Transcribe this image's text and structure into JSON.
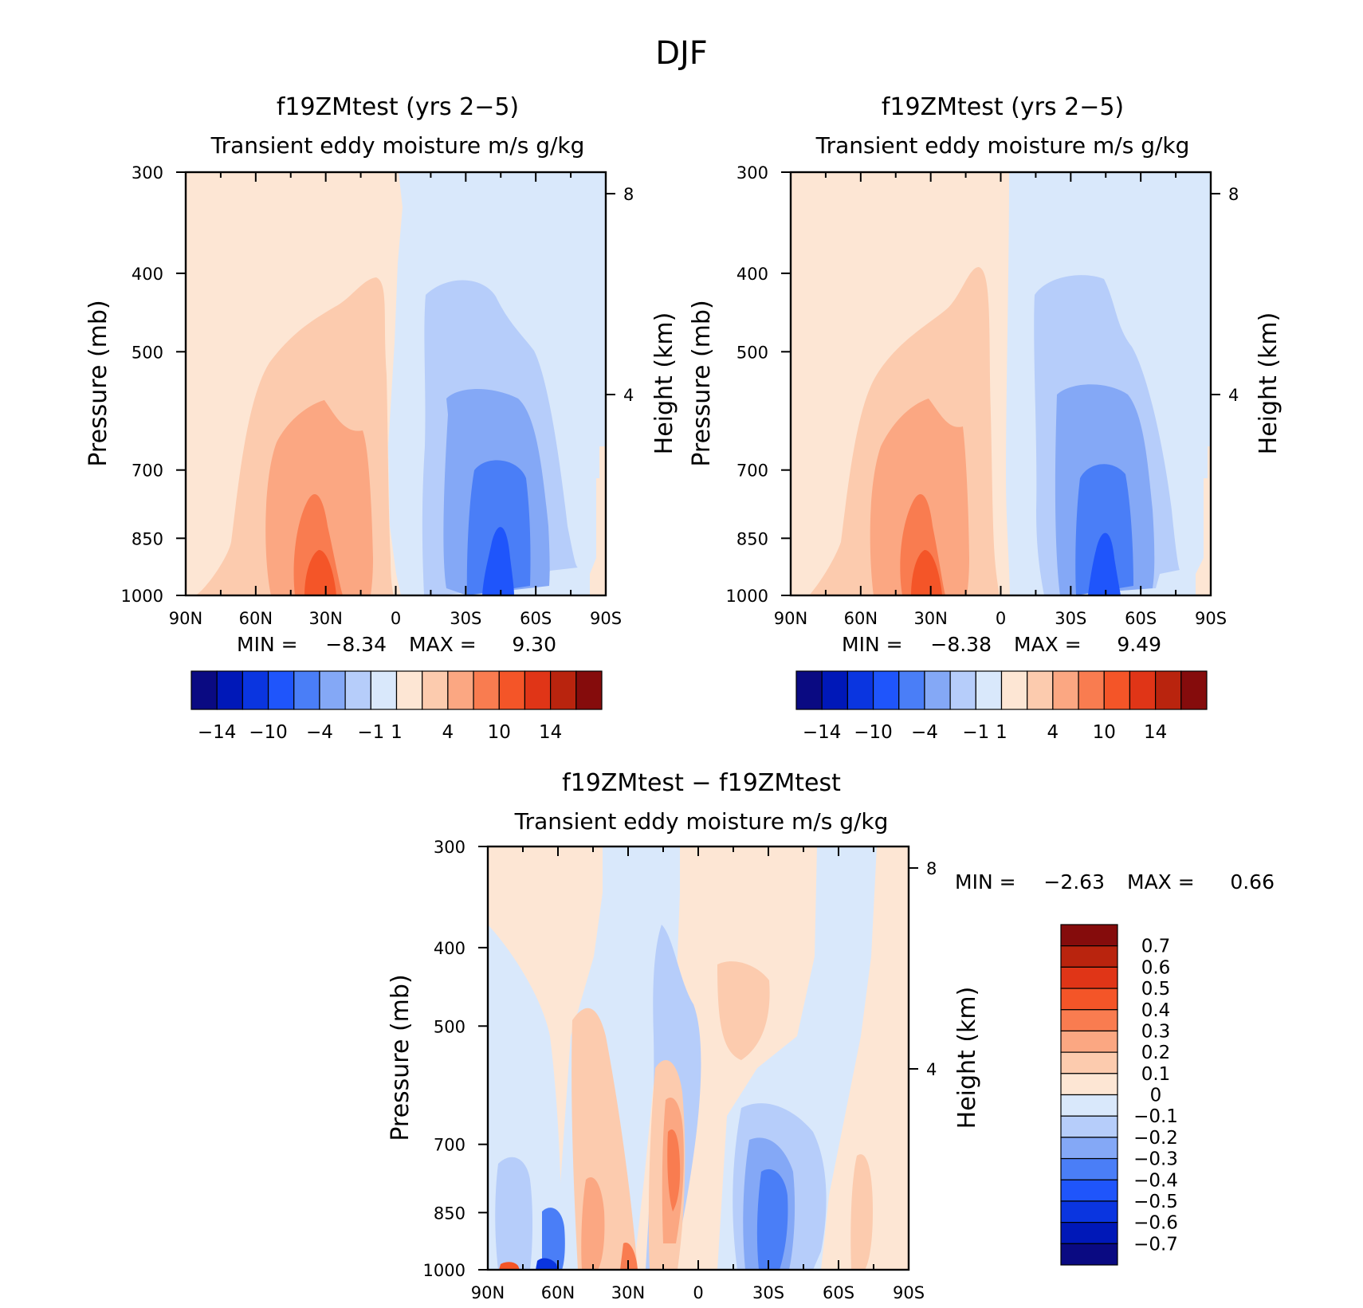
{
  "figure_title": "DJF",
  "colors": {
    "main_scale": [
      "#0a0a82",
      "#0018b8",
      "#0a35e0",
      "#1f55fb",
      "#4a7ef7",
      "#84a8f6",
      "#b6cdfa",
      "#d9e8fb",
      "#fde6d4",
      "#fccbae",
      "#fba782",
      "#f97c50",
      "#f45528",
      "#e03517",
      "#b9240e",
      "#850c0c"
    ],
    "diff_scale": [
      "#0a0a82",
      "#0018b8",
      "#0a35e0",
      "#1f55fb",
      "#4a7ef7",
      "#84a8f6",
      "#b6cdfa",
      "#d9e8fb",
      "#fde6d4",
      "#fccbae",
      "#fba782",
      "#f97c50",
      "#f45528",
      "#e03517",
      "#b9240e",
      "#850c0c"
    ]
  },
  "panels": [
    {
      "title": "f19ZMtest (yrs 2−5)",
      "subtitle": "Transient eddy moisture m/s g/kg",
      "ylabel": "Pressure (mb)",
      "y2label": "Height (km)",
      "yticks": [
        "300",
        "400",
        "500",
        "700",
        "850",
        "1000"
      ],
      "y2ticks": [
        "8",
        "4"
      ],
      "xticks": [
        "90N",
        "60N",
        "30N",
        "0",
        "30S",
        "60S",
        "90S"
      ],
      "min_label": "MIN =",
      "min_value": "−8.34",
      "max_label": "MAX =",
      "max_value": "9.30",
      "colorbar_labels": [
        "−14",
        "−10",
        "−4",
        "−1",
        "1",
        "4",
        "10",
        "14"
      ]
    },
    {
      "title": "f19ZMtest (yrs 2−5)",
      "subtitle": "Transient eddy moisture m/s g/kg",
      "ylabel": "Pressure (mb)",
      "y2label": "Height (km)",
      "yticks": [
        "300",
        "400",
        "500",
        "700",
        "850",
        "1000"
      ],
      "y2ticks": [
        "8",
        "4"
      ],
      "xticks": [
        "90N",
        "60N",
        "30N",
        "0",
        "30S",
        "60S",
        "90S"
      ],
      "min_label": "MIN =",
      "min_value": "−8.38",
      "max_label": "MAX =",
      "max_value": "9.49",
      "colorbar_labels": [
        "−14",
        "−10",
        "−4",
        "−1",
        "1",
        "4",
        "10",
        "14"
      ]
    },
    {
      "title": "f19ZMtest − f19ZMtest",
      "subtitle": "Transient eddy moisture m/s g/kg",
      "ylabel": "Pressure (mb)",
      "y2label": "Height (km)",
      "yticks": [
        "300",
        "400",
        "500",
        "700",
        "850",
        "1000"
      ],
      "y2ticks": [
        "8",
        "4"
      ],
      "xticks": [
        "90N",
        "60N",
        "30N",
        "0",
        "30S",
        "60S",
        "90S"
      ],
      "min_label": "MIN =",
      "min_value": "−2.63",
      "max_label": "MAX =",
      "max_value": "0.66",
      "colorbar_labels": [
        "0.7",
        "0.6",
        "0.5",
        "0.4",
        "0.3",
        "0.2",
        "0.1",
        "0",
        "−0.1",
        "−0.2",
        "−0.3",
        "−0.4",
        "−0.5",
        "−0.6",
        "−0.7"
      ]
    }
  ],
  "chart_data": [
    {
      "type": "heatmap",
      "title": "f19ZMtest (yrs 2−5)",
      "subtitle": "Transient eddy moisture m/s g/kg",
      "xlabel": "",
      "ylabel": "Pressure (mb)",
      "y2label": "Height (km)",
      "x_categories": [
        "90N",
        "60N",
        "30N",
        "0",
        "30S",
        "60S",
        "90S"
      ],
      "y_pressure_levels": [
        300,
        400,
        500,
        700,
        850,
        1000
      ],
      "y_scale": "log",
      "ylim": [
        1000,
        300
      ],
      "height_ticks_km": [
        8,
        4
      ],
      "color_levels": [
        -14,
        -10,
        -4,
        -1,
        1,
        4,
        10,
        14
      ],
      "min": -8.34,
      "max": 9.3,
      "features": [
        {
          "region": "30N near surface",
          "approx_value": 9
        },
        {
          "region": "30S–60S near surface",
          "approx_value": -8
        }
      ]
    },
    {
      "type": "heatmap",
      "title": "f19ZMtest (yrs 2−5)",
      "subtitle": "Transient eddy moisture m/s g/kg",
      "xlabel": "",
      "ylabel": "Pressure (mb)",
      "y2label": "Height (km)",
      "x_categories": [
        "90N",
        "60N",
        "30N",
        "0",
        "30S",
        "60S",
        "90S"
      ],
      "y_pressure_levels": [
        300,
        400,
        500,
        700,
        850,
        1000
      ],
      "y_scale": "log",
      "ylim": [
        1000,
        300
      ],
      "height_ticks_km": [
        8,
        4
      ],
      "color_levels": [
        -14,
        -10,
        -4,
        -1,
        1,
        4,
        10,
        14
      ],
      "min": -8.38,
      "max": 9.49
    },
    {
      "type": "heatmap",
      "title": "f19ZMtest − f19ZMtest",
      "subtitle": "Transient eddy moisture m/s g/kg",
      "xlabel": "",
      "ylabel": "Pressure (mb)",
      "y2label": "Height (km)",
      "x_categories": [
        "90N",
        "60N",
        "30N",
        "0",
        "30S",
        "60S",
        "90S"
      ],
      "y_pressure_levels": [
        300,
        400,
        500,
        700,
        850,
        1000
      ],
      "y_scale": "log",
      "ylim": [
        1000,
        300
      ],
      "height_ticks_km": [
        8,
        4
      ],
      "color_levels": [
        -0.7,
        -0.6,
        -0.5,
        -0.4,
        -0.3,
        -0.2,
        -0.1,
        0,
        0.1,
        0.2,
        0.3,
        0.4,
        0.5,
        0.6,
        0.7
      ],
      "min": -2.63,
      "max": 0.66
    }
  ]
}
